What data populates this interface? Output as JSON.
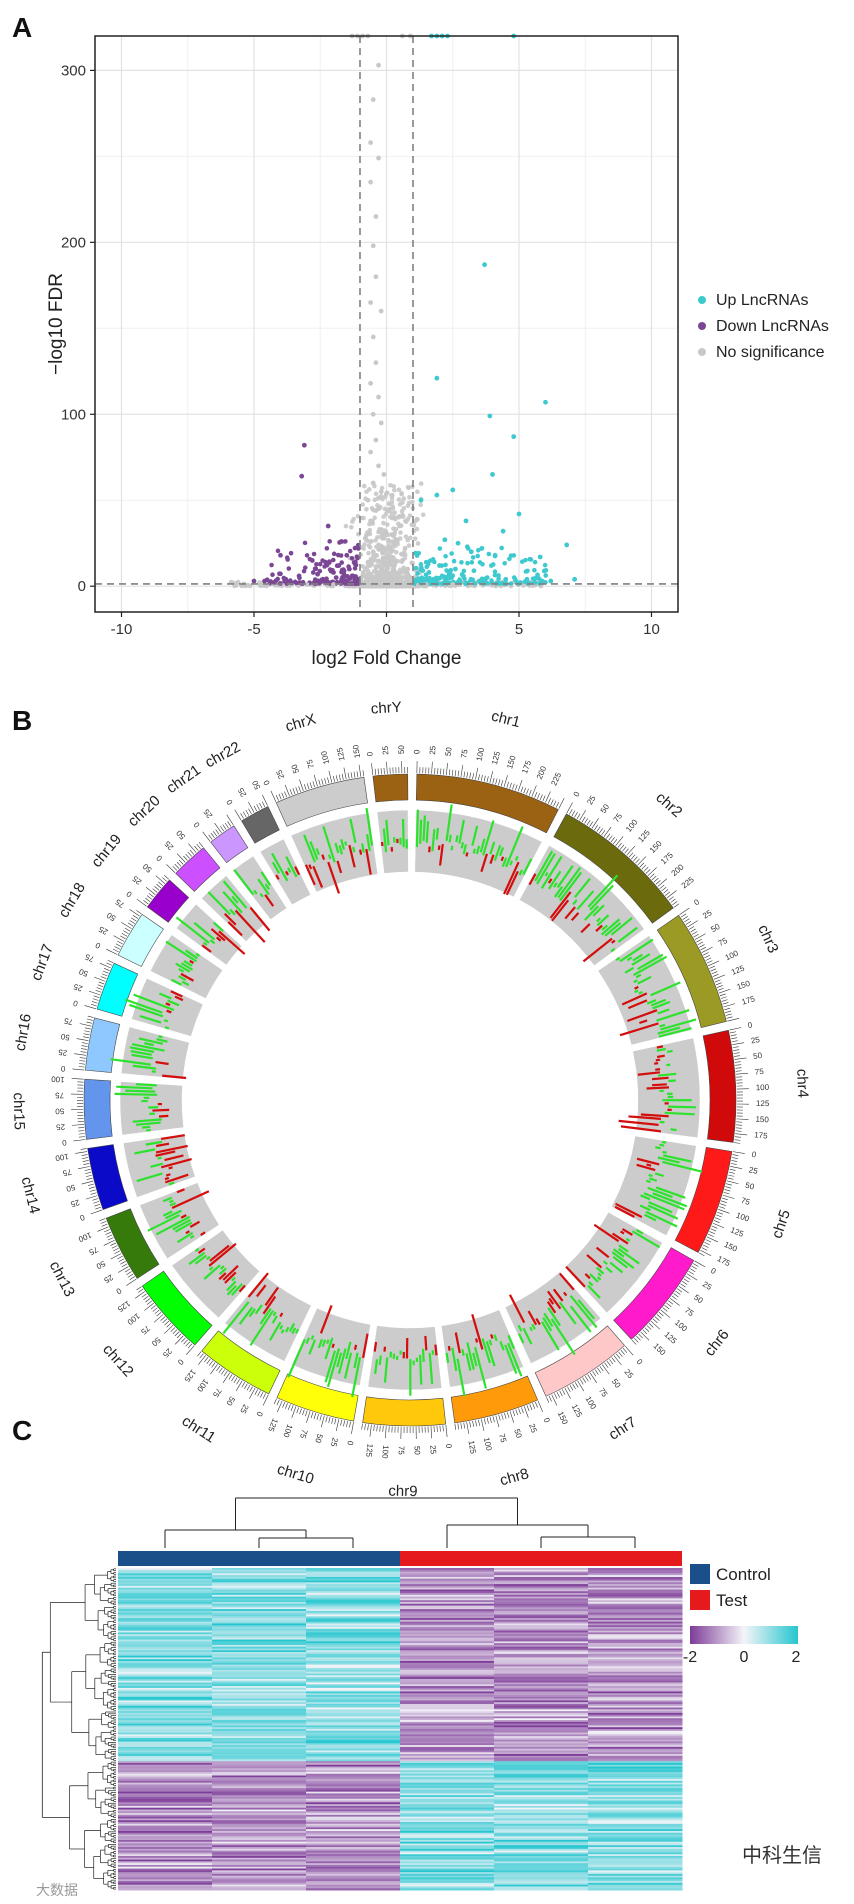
{
  "panels": {
    "a": "A",
    "b": "B",
    "c": "C"
  },
  "colors": {
    "up": "#3ec9cf",
    "down": "#7b4795",
    "ns": "#c8c8c8",
    "control": "#1b4f8a",
    "test": "#e41a1c",
    "heat_low": "#7d3c98",
    "heat_mid": "#f4f4f8",
    "heat_high": "#26c6cf"
  },
  "watermark": {
    "left_text": "大数据",
    "right_text": "中科生信"
  },
  "chart_data": [
    {
      "id": "volcano",
      "type": "scatter",
      "title": "",
      "xlabel": "log2 Fold Change",
      "ylabel": "−log10 FDR",
      "xlim": [
        -11,
        11
      ],
      "ylim": [
        -15,
        320
      ],
      "x_ticks": [
        -10,
        -5,
        0,
        5,
        10
      ],
      "y_ticks": [
        0,
        100,
        200,
        300
      ],
      "thresholds": {
        "x": [
          -1,
          1
        ],
        "y": 1.3
      },
      "grid": true,
      "legend_position": "right",
      "series": [
        {
          "name": "Up LncRNAs",
          "color_key": "up",
          "points": [
            [
              4.8,
              320
            ],
            [
              1.7,
              320
            ],
            [
              1.9,
              320
            ],
            [
              2.1,
              320
            ],
            [
              2.3,
              320
            ],
            [
              3.7,
              187
            ],
            [
              6.0,
              107
            ],
            [
              1.9,
              121
            ],
            [
              3.9,
              99
            ],
            [
              4.8,
              87
            ],
            [
              4.0,
              65
            ],
            [
              2.5,
              56
            ],
            [
              1.9,
              53
            ],
            [
              1.3,
              50
            ],
            [
              5.0,
              42
            ],
            [
              3.0,
              38
            ],
            [
              4.4,
              32
            ],
            [
              6.8,
              24
            ],
            [
              3.2,
              20
            ],
            [
              5.8,
              17
            ],
            [
              2.2,
              27
            ],
            [
              2.7,
              25
            ],
            [
              3.6,
              22
            ],
            [
              4.1,
              18
            ],
            [
              1.5,
              14
            ],
            [
              2.0,
              12
            ],
            [
              2.6,
              10
            ],
            [
              3.3,
              9
            ],
            [
              1.6,
              8
            ],
            [
              2.1,
              6
            ],
            [
              2.9,
              6
            ],
            [
              3.8,
              5
            ],
            [
              4.5,
              4
            ],
            [
              5.3,
              4
            ],
            [
              1.4,
              3
            ],
            [
              1.8,
              3
            ],
            [
              2.4,
              2
            ],
            [
              3.0,
              2
            ],
            [
              3.5,
              3
            ],
            [
              4.2,
              2
            ],
            [
              6.2,
              3
            ],
            [
              7.1,
              4
            ]
          ]
        },
        {
          "name": "Down LncRNAs",
          "color_key": "down",
          "points": [
            [
              -3.1,
              82
            ],
            [
              -3.2,
              64
            ],
            [
              -1.7,
              26
            ],
            [
              -2.2,
              35
            ],
            [
              -4.0,
              18
            ],
            [
              -2.8,
              15
            ],
            [
              -2.3,
              14
            ],
            [
              -1.8,
              12
            ],
            [
              -1.5,
              18
            ],
            [
              -1.4,
              10
            ],
            [
              -1.6,
              9
            ],
            [
              -2.0,
              8
            ],
            [
              -2.6,
              7
            ],
            [
              -3.3,
              6
            ],
            [
              -1.3,
              6
            ],
            [
              -1.9,
              5
            ],
            [
              -2.4,
              4
            ],
            [
              -3.8,
              4
            ],
            [
              -4.6,
              3
            ],
            [
              -5.0,
              3
            ],
            [
              -1.2,
              4
            ],
            [
              -1.5,
              3
            ],
            [
              -2.1,
              2
            ],
            [
              -2.9,
              2
            ],
            [
              -1.7,
              2
            ]
          ]
        },
        {
          "name": "No significance",
          "color_key": "ns",
          "points": [
            [
              -1.3,
              320
            ],
            [
              -1.1,
              320
            ],
            [
              -0.9,
              320
            ],
            [
              -0.7,
              320
            ],
            [
              0.6,
              320
            ],
            [
              0.9,
              320
            ],
            [
              -0.3,
              303
            ],
            [
              -0.5,
              283
            ],
            [
              -0.6,
              258
            ],
            [
              -0.3,
              249
            ],
            [
              -0.6,
              235
            ],
            [
              -0.4,
              215
            ],
            [
              -0.5,
              198
            ],
            [
              -0.4,
              180
            ],
            [
              -0.6,
              165
            ],
            [
              -0.2,
              160
            ],
            [
              -0.5,
              145
            ],
            [
              -0.4,
              130
            ],
            [
              -0.6,
              118
            ],
            [
              -0.3,
              110
            ],
            [
              -0.5,
              100
            ],
            [
              -0.2,
              95
            ],
            [
              -0.4,
              85
            ],
            [
              -0.6,
              78
            ],
            [
              -0.3,
              70
            ],
            [
              -0.1,
              65
            ],
            [
              -0.5,
              60
            ],
            [
              -0.2,
              55
            ],
            [
              -0.7,
              50
            ],
            [
              0.1,
              48
            ],
            [
              -0.4,
              44
            ],
            [
              0.3,
              40
            ],
            [
              -0.6,
              38
            ],
            [
              0.5,
              35
            ],
            [
              -0.2,
              33
            ],
            [
              0.2,
              30
            ],
            [
              -0.8,
              28
            ],
            [
              0.4,
              26
            ],
            [
              -0.3,
              24
            ],
            [
              0.7,
              22
            ],
            [
              -0.5,
              20
            ],
            [
              0.1,
              18
            ],
            [
              -0.1,
              16
            ],
            [
              0.6,
              15
            ],
            [
              -0.7,
              14
            ],
            [
              0.3,
              12
            ],
            [
              -0.4,
              11
            ],
            [
              0.8,
              10
            ],
            [
              -0.2,
              9
            ],
            [
              0.5,
              8
            ],
            [
              -0.6,
              7
            ],
            [
              0.2,
              6
            ],
            [
              -0.9,
              6
            ],
            [
              0.9,
              5
            ],
            [
              -0.3,
              5
            ],
            [
              0.4,
              4
            ],
            [
              -0.5,
              3
            ],
            [
              0.0,
              3
            ],
            [
              0.7,
              2
            ],
            [
              -0.8,
              2
            ],
            [
              1.5,
              1
            ],
            [
              2.5,
              1
            ],
            [
              -2.0,
              1
            ],
            [
              3.2,
              1
            ],
            [
              -3.0,
              1
            ],
            [
              4.0,
              0.5
            ],
            [
              -4.5,
              0.5
            ],
            [
              5.5,
              0.5
            ],
            [
              1.2,
              0.5
            ]
          ]
        }
      ]
    },
    {
      "id": "circos",
      "type": "circos",
      "title": "",
      "chromosomes": [
        {
          "name": "chr1",
          "length": 249,
          "color": "#9a6212",
          "ticks": [
            "0",
            "25",
            "50",
            "75",
            "100",
            "125",
            "150",
            "175",
            "200",
            "225"
          ]
        },
        {
          "name": "chr2",
          "length": 243,
          "color": "#6b6b0e",
          "ticks": [
            "0",
            "25",
            "50",
            "75",
            "100",
            "125",
            "150",
            "175",
            "200",
            "225"
          ]
        },
        {
          "name": "chr3",
          "length": 198,
          "color": "#9a9a24",
          "ticks": [
            "0",
            "25",
            "50",
            "75",
            "100",
            "125",
            "150",
            "175"
          ]
        },
        {
          "name": "chr4",
          "length": 191,
          "color": "#d00a0a",
          "ticks": [
            "0",
            "25",
            "50",
            "75",
            "100",
            "125",
            "150",
            "175"
          ]
        },
        {
          "name": "chr5",
          "length": 181,
          "color": "#ff1a1a",
          "ticks": [
            "0",
            "25",
            "50",
            "75",
            "100",
            "125",
            "150",
            "175"
          ]
        },
        {
          "name": "chr6",
          "length": 171,
          "color": "#ff1acc",
          "ticks": [
            "0",
            "25",
            "50",
            "75",
            "100",
            "125",
            "150"
          ]
        },
        {
          "name": "chr7",
          "length": 159,
          "color": "#ffc8c8",
          "ticks": [
            "0",
            "25",
            "50",
            "75",
            "100",
            "125",
            "150"
          ]
        },
        {
          "name": "chr8",
          "length": 146,
          "color": "#ff9a0a",
          "ticks": [
            "0",
            "25",
            "50",
            "75",
            "100",
            "125"
          ]
        },
        {
          "name": "chr9",
          "length": 141,
          "color": "#ffc80a",
          "ticks": [
            "0",
            "25",
            "50",
            "75",
            "100",
            "125"
          ]
        },
        {
          "name": "chr10",
          "length": 136,
          "color": "#ffff0a",
          "ticks": [
            "0",
            "25",
            "50",
            "75",
            "100",
            "125"
          ]
        },
        {
          "name": "chr11",
          "length": 135,
          "color": "#ccff0a",
          "ticks": [
            "0",
            "25",
            "50",
            "75",
            "100",
            "125"
          ]
        },
        {
          "name": "chr12",
          "length": 134,
          "color": "#00ff00",
          "ticks": [
            "0",
            "25",
            "50",
            "75",
            "100",
            "125"
          ]
        },
        {
          "name": "chr13",
          "length": 115,
          "color": "#357a0a",
          "ticks": [
            "0",
            "25",
            "50",
            "75",
            "100"
          ]
        },
        {
          "name": "chr14",
          "length": 107,
          "color": "#0a0ac8",
          "ticks": [
            "0",
            "25",
            "50",
            "75",
            "100"
          ]
        },
        {
          "name": "chr15",
          "length": 102,
          "color": "#6495ed",
          "ticks": [
            "0",
            "25",
            "50",
            "75",
            "100"
          ]
        },
        {
          "name": "chr16",
          "length": 90,
          "color": "#8fc8ff",
          "ticks": [
            "0",
            "25",
            "50",
            "75"
          ]
        },
        {
          "name": "chr17",
          "length": 83,
          "color": "#00ffff",
          "ticks": [
            "0",
            "25",
            "50",
            "75"
          ]
        },
        {
          "name": "chr18",
          "length": 80,
          "color": "#ccffff",
          "ticks": [
            "0",
            "25",
            "50",
            "75"
          ]
        },
        {
          "name": "chr19",
          "length": 59,
          "color": "#9a00cc",
          "ticks": [
            "0",
            "25",
            "50"
          ]
        },
        {
          "name": "chr20",
          "length": 64,
          "color": "#cc50ff",
          "ticks": [
            "0",
            "25",
            "50"
          ]
        },
        {
          "name": "chr21",
          "length": 48,
          "color": "#cc96ff",
          "ticks": [
            "0",
            "25"
          ]
        },
        {
          "name": "chr22",
          "length": 51,
          "color": "#666666",
          "ticks": [
            "0",
            "25",
            "50"
          ]
        },
        {
          "name": "chrX",
          "length": 155,
          "color": "#cccccc",
          "ticks": [
            "0",
            "25",
            "50",
            "75",
            "100",
            "125",
            "150"
          ]
        },
        {
          "name": "chrY",
          "length": 59,
          "color": "#9a6212",
          "ticks": [
            "0",
            "25",
            "50"
          ]
        }
      ],
      "track_colors": {
        "up": "#2de22d",
        "down": "#d40d0d",
        "background": "#cccccc"
      }
    },
    {
      "id": "heatmap",
      "type": "heatmap",
      "title": "",
      "samples": 6,
      "groups": [
        {
          "name": "Control",
          "color_key": "control",
          "count": 3
        },
        {
          "name": "Test",
          "color_key": "test",
          "count": 3
        }
      ],
      "legend_scale": {
        "min": -2,
        "mid": 0,
        "max": 2,
        "labels": [
          "-2",
          "0",
          "2"
        ]
      },
      "row_blocks": [
        {
          "fraction": 0.6,
          "pattern": [
            1,
            1,
            1,
            -1,
            -1,
            -1
          ]
        },
        {
          "fraction": 0.4,
          "pattern": [
            -1,
            -1,
            -1,
            1,
            1,
            1
          ]
        }
      ]
    }
  ]
}
